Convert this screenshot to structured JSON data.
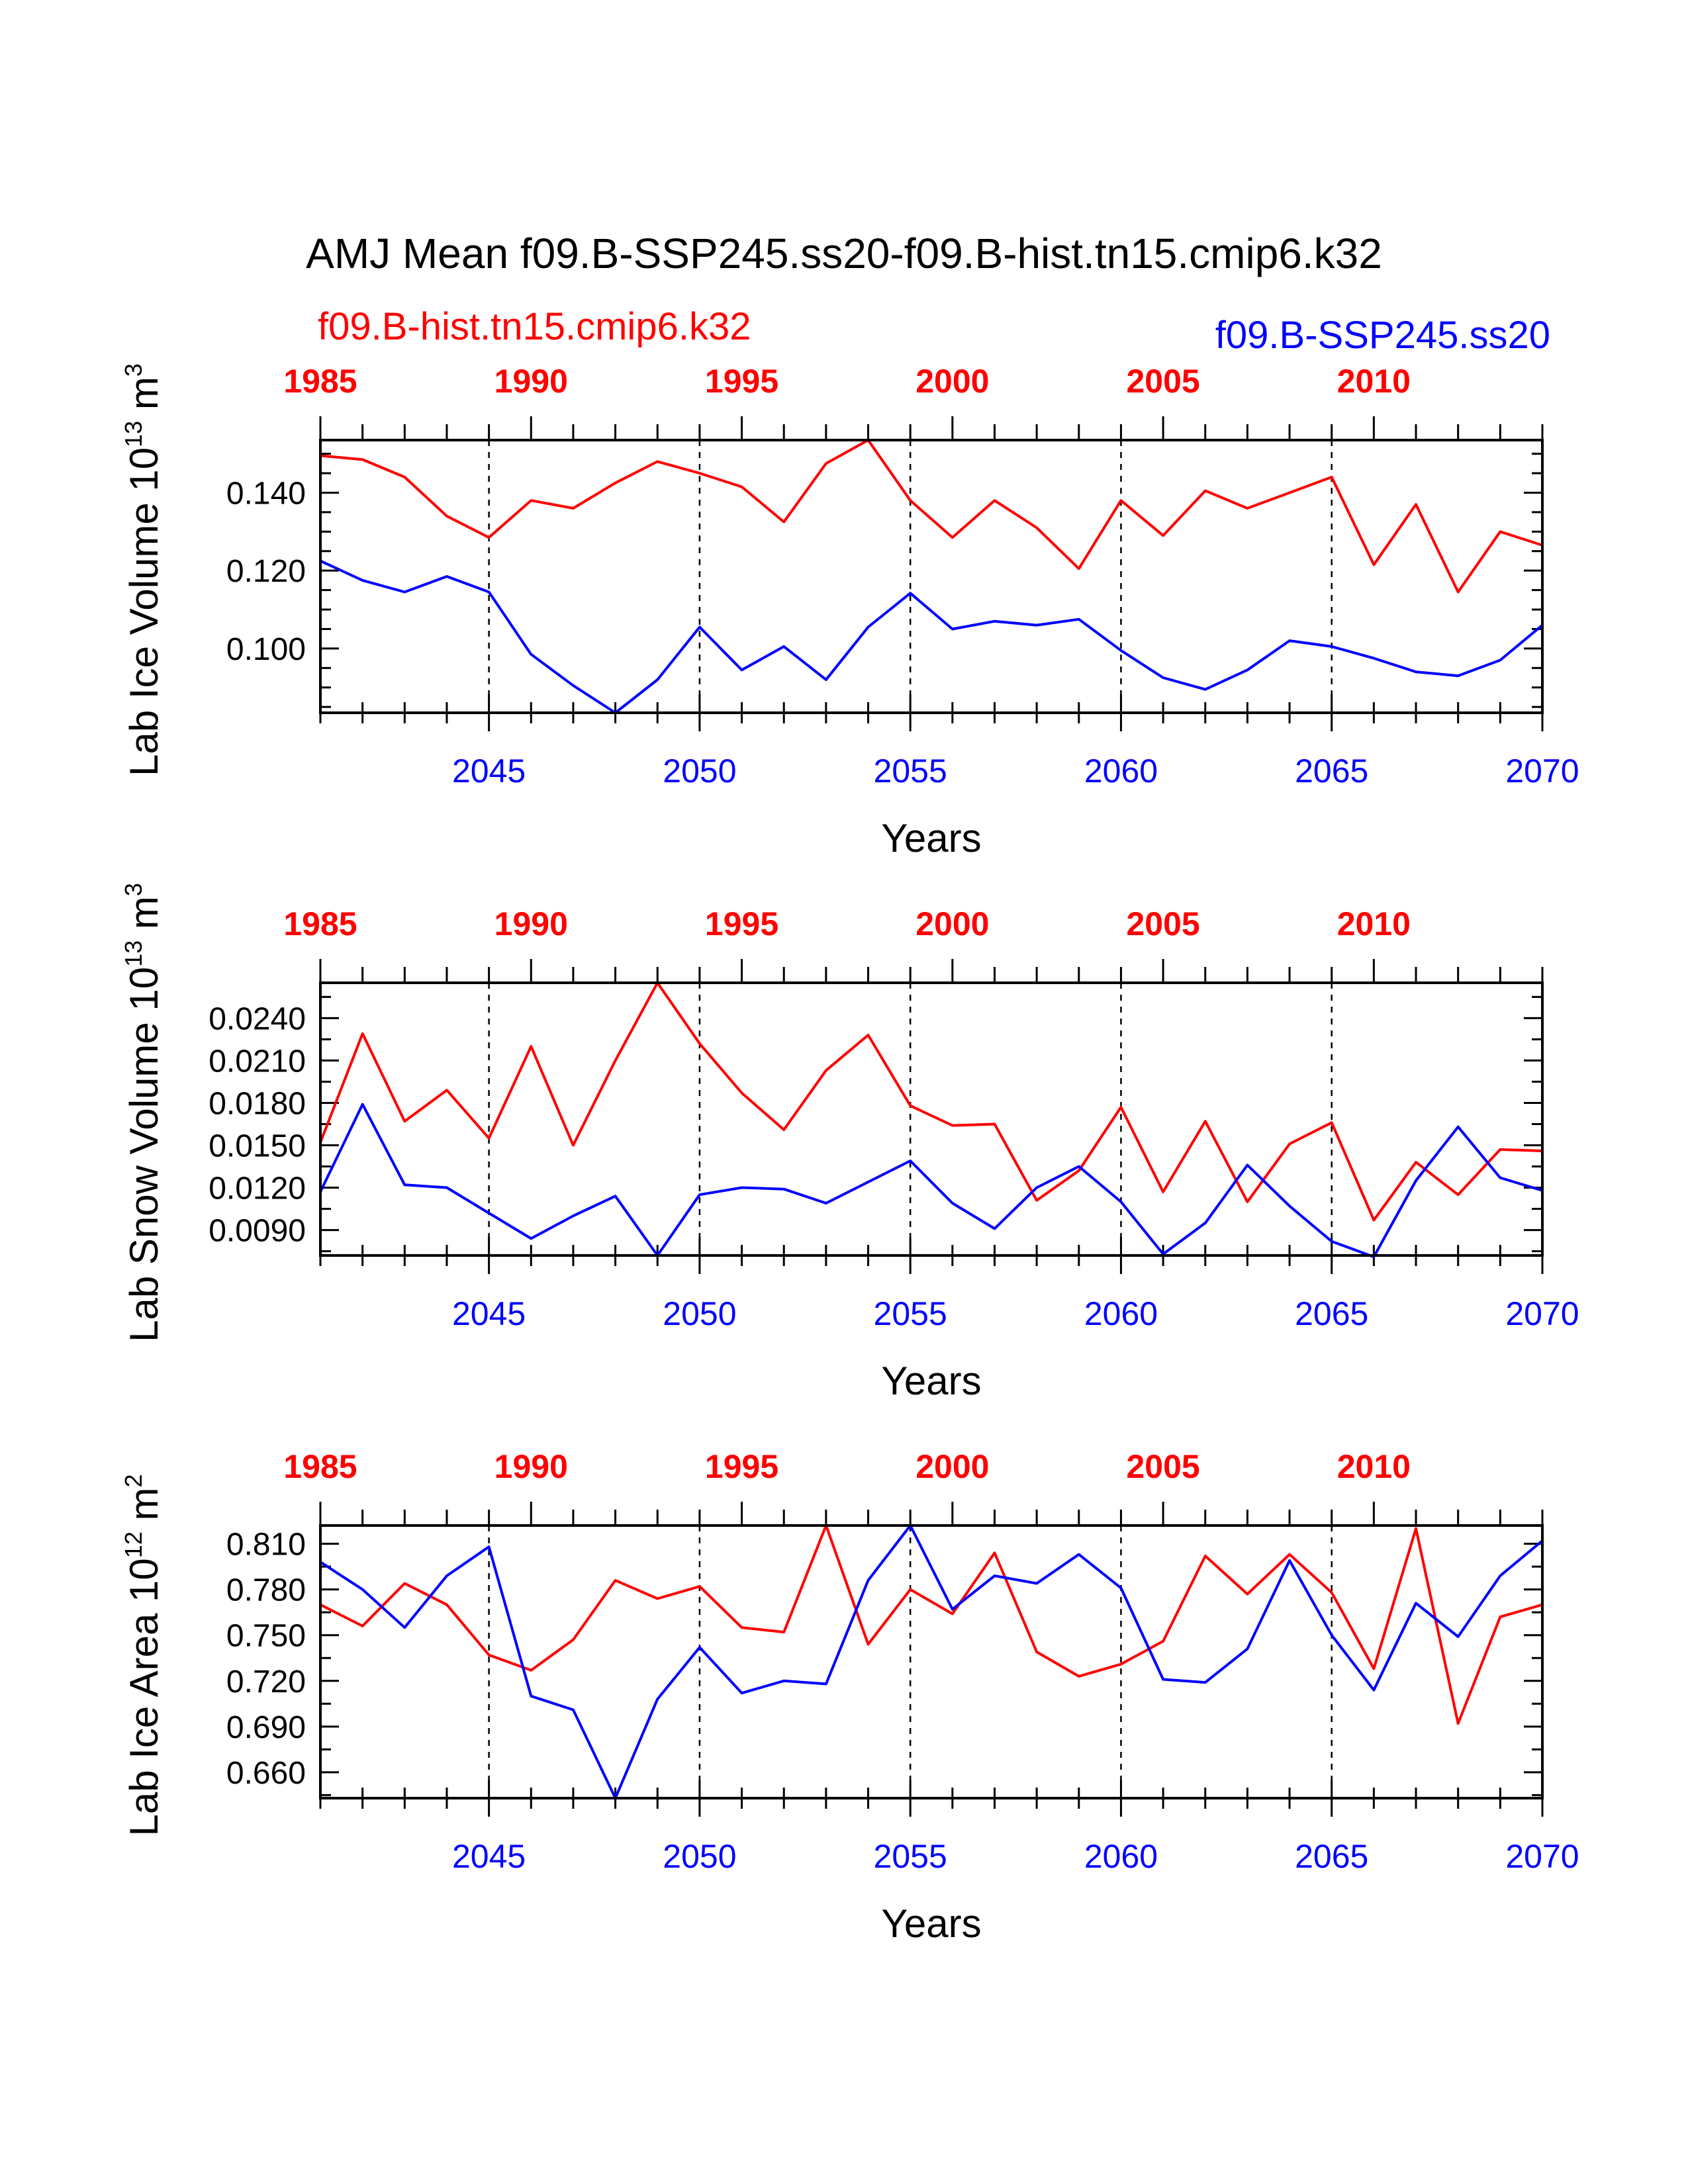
{
  "title": "AMJ Mean f09.B-SSP245.ss20-f09.B-hist.tn15.cmip6.k32",
  "legend": {
    "left": {
      "label": "f09.B-hist.tn15.cmip6.k32",
      "color": "#ff0000"
    },
    "right": {
      "label": "f09.B-SSP245.ss20",
      "color": "#0000ff"
    }
  },
  "colors": {
    "hist": "#ff0000",
    "ssp": "#0000ff",
    "axis": "#000000"
  },
  "chart_data": [
    {
      "type": "line",
      "ylabel": "Lab Ice Volume 10^13 m^3",
      "ylabel_parts": {
        "main": "Lab Ice Volume 10",
        "exp": "13",
        "unit": " m",
        "unit_exp": "3"
      },
      "xlabel": "Years",
      "bottom_axis": {
        "range": [
          2041,
          2070
        ],
        "ticks": [
          2045,
          2050,
          2055,
          2060,
          2065,
          2070
        ],
        "tick_labels": [
          "2045",
          "2050",
          "2055",
          "2060",
          "2065",
          "2070"
        ]
      },
      "top_axis": {
        "range": [
          1985,
          2014
        ],
        "ticks": [
          1985,
          1990,
          1995,
          2000,
          2005,
          2010
        ],
        "tick_labels": [
          "1985",
          "1990",
          "1995",
          "2000",
          "2005",
          "2010"
        ]
      },
      "ylim": [
        0.0835,
        0.1535
      ],
      "yticks": [
        0.1,
        0.12,
        0.14
      ],
      "ytick_labels": [
        "0.100",
        "0.120",
        "0.140"
      ],
      "yminor_step": 0.005,
      "vlines": [
        2045,
        2050,
        2055,
        2060,
        2065
      ],
      "series": [
        {
          "name": "f09.B-hist.tn15.cmip6.k32",
          "color": "#ff0000",
          "values": [
            0.1495,
            0.1485,
            0.144,
            0.134,
            0.1285,
            0.138,
            0.136,
            0.1425,
            0.148,
            0.145,
            0.1415,
            0.1325,
            0.1475,
            0.1535,
            0.138,
            0.1285,
            0.138,
            0.131,
            0.1205,
            0.138,
            0.129,
            0.1405,
            0.136,
            0.14,
            0.144,
            0.1215,
            0.137,
            0.1145,
            0.13,
            0.1265
          ]
        },
        {
          "name": "f09.B-SSP245.ss20",
          "color": "#0000ff",
          "values": [
            0.1225,
            0.1175,
            0.1145,
            0.1185,
            0.1145,
            0.0985,
            0.0905,
            0.0835,
            0.092,
            0.1055,
            0.0945,
            0.1005,
            0.092,
            0.1055,
            0.1142,
            0.105,
            0.107,
            0.106,
            0.1075,
            0.0995,
            0.0925,
            0.0895,
            0.0945,
            0.102,
            0.1005,
            0.0975,
            0.094,
            0.093,
            0.097,
            0.106
          ]
        }
      ]
    },
    {
      "type": "line",
      "ylabel": "Lab Snow Volume 10^13 m^3",
      "ylabel_parts": {
        "main": "Lab Snow Volume 10",
        "exp": "13",
        "unit": " m",
        "unit_exp": "3"
      },
      "xlabel": "Years",
      "bottom_axis": {
        "range": [
          2041,
          2070
        ],
        "ticks": [
          2045,
          2050,
          2055,
          2060,
          2065,
          2070
        ],
        "tick_labels": [
          "2045",
          "2050",
          "2055",
          "2060",
          "2065",
          "2070"
        ]
      },
      "top_axis": {
        "range": [
          1985,
          2014
        ],
        "ticks": [
          1985,
          1990,
          1995,
          2000,
          2005,
          2010
        ],
        "tick_labels": [
          "1985",
          "1990",
          "1995",
          "2000",
          "2005",
          "2010"
        ]
      },
      "ylim": [
        0.0072,
        0.0265
      ],
      "yticks": [
        0.009,
        0.012,
        0.015,
        0.018,
        0.021,
        0.024
      ],
      "ytick_labels": [
        "0.0090",
        "0.0120",
        "0.0150",
        "0.0180",
        "0.0210",
        "0.0240"
      ],
      "yminor_step": 0.0015,
      "vlines": [
        2045,
        2050,
        2055,
        2060,
        2065
      ],
      "series": [
        {
          "name": "f09.B-hist.tn15.cmip6.k32",
          "color": "#ff0000",
          "values": [
            0.0152,
            0.0229,
            0.0167,
            0.0189,
            0.0155,
            0.022,
            0.015,
            0.021,
            0.0265,
            0.0222,
            0.0187,
            0.0161,
            0.0203,
            0.0228,
            0.0178,
            0.0164,
            0.0165,
            0.0111,
            0.0132,
            0.0177,
            0.0117,
            0.0167,
            0.011,
            0.0151,
            0.0166,
            0.0097,
            0.0138,
            0.0115,
            0.0147,
            0.0146
          ]
        },
        {
          "name": "f09.B-SSP245.ss20",
          "color": "#0000ff",
          "values": [
            0.0117,
            0.0179,
            0.0122,
            0.012,
            0.0102,
            0.0084,
            0.01,
            0.0114,
            0.0072,
            0.0115,
            0.012,
            0.0119,
            0.0109,
            0.0124,
            0.0139,
            0.0109,
            0.0091,
            0.012,
            0.0135,
            0.011,
            0.0073,
            0.0095,
            0.0136,
            0.0107,
            0.0082,
            0.0071,
            0.0125,
            0.0163,
            0.0127,
            0.0118
          ]
        }
      ]
    },
    {
      "type": "line",
      "ylabel": "Lab Ice Area 10^12 m^2",
      "ylabel_parts": {
        "main": "Lab Ice Area 10",
        "exp": "12",
        "unit": " m",
        "unit_exp": "2"
      },
      "xlabel": "Years",
      "bottom_axis": {
        "range": [
          2041,
          2070
        ],
        "ticks": [
          2045,
          2050,
          2055,
          2060,
          2065,
          2070
        ],
        "tick_labels": [
          "2045",
          "2050",
          "2055",
          "2060",
          "2065",
          "2070"
        ]
      },
      "top_axis": {
        "range": [
          1985,
          2014
        ],
        "ticks": [
          1985,
          1990,
          1995,
          2000,
          2005,
          2010
        ],
        "tick_labels": [
          "1985",
          "1990",
          "1995",
          "2000",
          "2005",
          "2010"
        ]
      },
      "ylim": [
        0.643,
        0.822
      ],
      "yticks": [
        0.66,
        0.69,
        0.72,
        0.75,
        0.78,
        0.81
      ],
      "ytick_labels": [
        "0.660",
        "0.690",
        "0.720",
        "0.750",
        "0.780",
        "0.810"
      ],
      "yminor_step": 0.015,
      "vlines": [
        2045,
        2050,
        2055,
        2060,
        2065
      ],
      "series": [
        {
          "name": "f09.B-hist.tn15.cmip6.k32",
          "color": "#ff0000",
          "values": [
            0.77,
            0.756,
            0.784,
            0.77,
            0.737,
            0.727,
            0.747,
            0.786,
            0.774,
            0.782,
            0.755,
            0.752,
            0.822,
            0.744,
            0.78,
            0.764,
            0.804,
            0.739,
            0.723,
            0.731,
            0.746,
            0.802,
            0.777,
            0.803,
            0.778,
            0.728,
            0.82,
            0.692,
            0.762,
            0.77
          ]
        },
        {
          "name": "f09.B-SSP245.ss20",
          "color": "#0000ff",
          "values": [
            0.798,
            0.78,
            0.755,
            0.789,
            0.808,
            0.71,
            0.701,
            0.643,
            0.708,
            0.742,
            0.712,
            0.72,
            0.718,
            0.786,
            0.822,
            0.767,
            0.789,
            0.784,
            0.803,
            0.781,
            0.721,
            0.719,
            0.741,
            0.799,
            0.75,
            0.714,
            0.771,
            0.749,
            0.789,
            0.812
          ]
        }
      ]
    }
  ]
}
